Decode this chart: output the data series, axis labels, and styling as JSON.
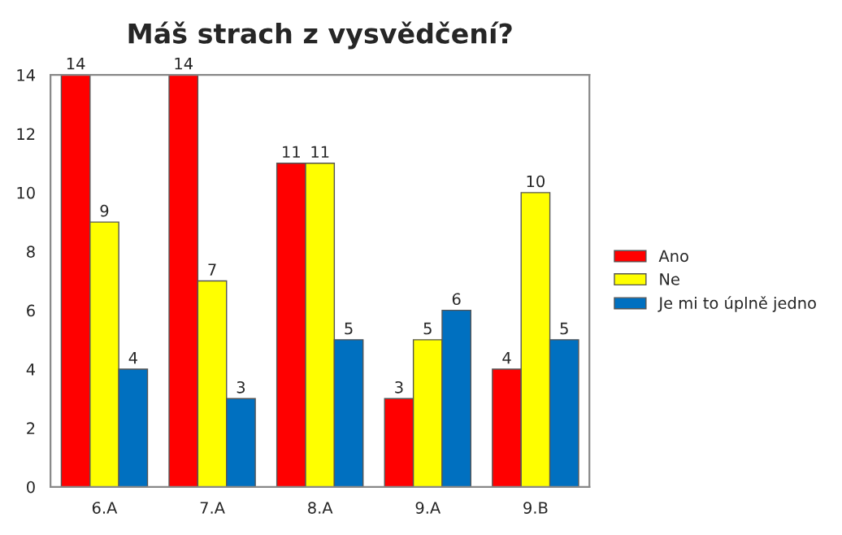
{
  "chart_data": {
    "type": "bar",
    "title": "Máš strach z vysvědčení?",
    "categories": [
      "6.A",
      "7.A",
      "8.A",
      "9.A",
      "9.B"
    ],
    "series": [
      {
        "name": "Ano",
        "color": "#ff0000",
        "values": [
          14,
          14,
          11,
          3,
          4
        ]
      },
      {
        "name": "Ne",
        "color": "#ffff00",
        "values": [
          9,
          7,
          11,
          5,
          10
        ]
      },
      {
        "name": "Je mi to úplně jedno",
        "color": "#0070c0",
        "values": [
          4,
          3,
          5,
          6,
          5
        ]
      }
    ],
    "ylim": [
      0,
      14
    ],
    "yticks": [
      0,
      2,
      4,
      6,
      8,
      10,
      12,
      14
    ],
    "grid": false,
    "legend": "right",
    "data_labels": true
  }
}
